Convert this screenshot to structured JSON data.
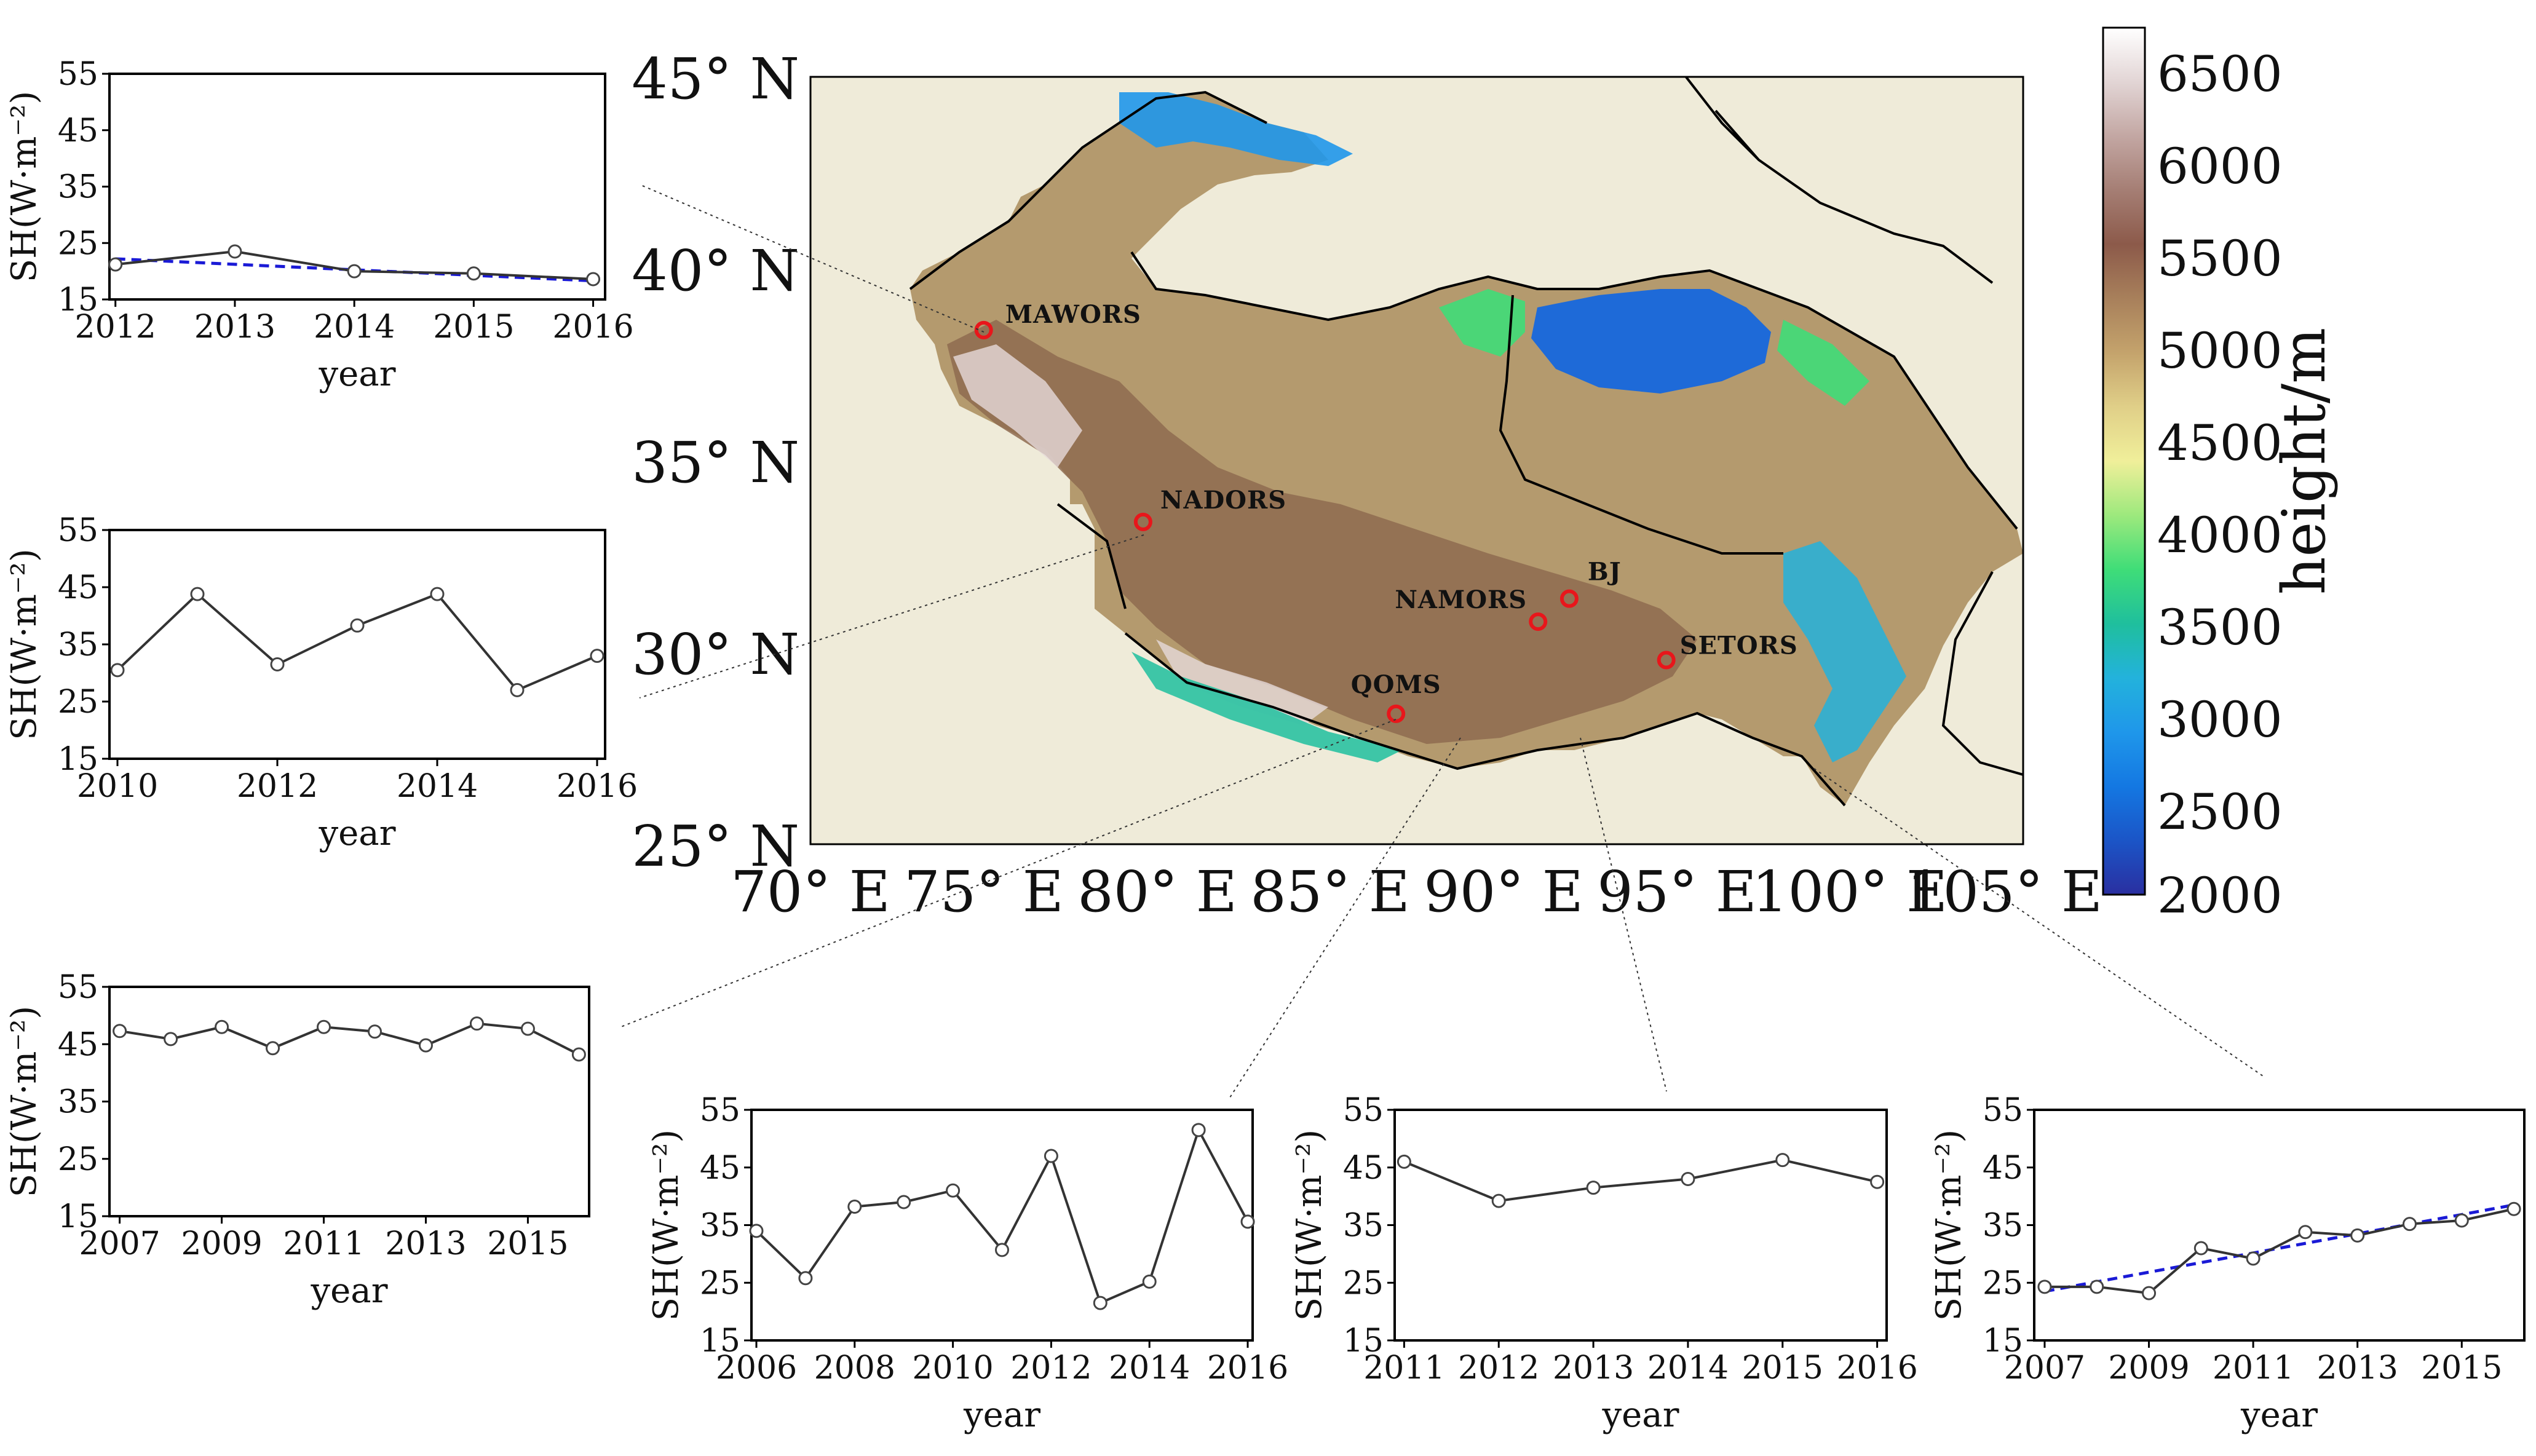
{
  "map": {
    "lat_ticks": [
      "45° N",
      "40° N",
      "35° N",
      "30° N",
      "25° N"
    ],
    "lon_ticks": [
      "70° E",
      "75° E",
      "80° E",
      "85° E",
      "90° E",
      "95° E",
      "100° E",
      "105° E"
    ],
    "extent": {
      "lon": [
        70,
        105
      ],
      "lat": [
        25,
        45
      ]
    },
    "background_color": "#efebd9",
    "stations": [
      {
        "name": "MAWORS",
        "lon": 75.0,
        "lat": 38.4
      },
      {
        "name": "NADORS",
        "lon": 79.6,
        "lat": 33.4
      },
      {
        "name": "NAMORS",
        "lon": 91.0,
        "lat": 30.8
      },
      {
        "name": "BJ",
        "lon": 91.9,
        "lat": 31.4
      },
      {
        "name": "SETORS",
        "lon": 94.7,
        "lat": 29.8
      },
      {
        "name": "QOMS",
        "lon": 86.9,
        "lat": 28.4
      }
    ]
  },
  "colorbar": {
    "label": "height/m",
    "ticks": [
      "6500",
      "6000",
      "5500",
      "5000",
      "4500",
      "4000",
      "3500",
      "3000",
      "2500",
      "2000"
    ],
    "range": [
      2000,
      6700
    ],
    "stops": [
      "#2a2fa0",
      "#1b55c7",
      "#1478e2",
      "#1f97ea",
      "#23b2dc",
      "#1fbf9d",
      "#3fdd78",
      "#9de97d",
      "#f0ef9a",
      "#e0cf88",
      "#c4a36c",
      "#a8805b",
      "#8c5a4a",
      "#a57e74",
      "#c3a7a3",
      "#e2d5d5",
      "#ffffff"
    ]
  },
  "chart_data": [
    {
      "type": "line",
      "station": "MAWORS",
      "x": [
        2012,
        2013,
        2014,
        2015,
        2016
      ],
      "series": [
        {
          "values": [
            21.2,
            23.5,
            20.0,
            19.6,
            18.6
          ]
        }
      ],
      "trend": {
        "x": [
          2012,
          2016
        ],
        "y": [
          22.2,
          18.3
        ]
      },
      "xticks": [
        "2012",
        "2013",
        "2014",
        "2015",
        "2016"
      ],
      "yticks": [
        "55",
        "45",
        "35",
        "25",
        "15"
      ],
      "xlim": [
        2011.95,
        2016.1
      ],
      "ylim": [
        15,
        55
      ],
      "xlabel": "year",
      "ylabel": "SH(W·m⁻²)"
    },
    {
      "type": "line",
      "station": "NADORS",
      "x": [
        2010,
        2011,
        2012,
        2013,
        2014,
        2015,
        2016
      ],
      "series": [
        {
          "values": [
            30.5,
            43.8,
            31.5,
            38.3,
            43.8,
            27.0,
            33.0
          ]
        }
      ],
      "xticks": [
        "2010",
        "2012",
        "2014",
        "2016"
      ],
      "yticks": [
        "55",
        "45",
        "35",
        "25",
        "15"
      ],
      "xlim": [
        2009.9,
        2016.1
      ],
      "ylim": [
        15,
        55
      ],
      "xlabel": "year",
      "ylabel": "SH(W·m⁻²)"
    },
    {
      "type": "line",
      "station": "QOMS",
      "x": [
        2007,
        2008,
        2009,
        2010,
        2011,
        2012,
        2013,
        2014,
        2015,
        2016
      ],
      "series": [
        {
          "values": [
            47.3,
            45.9,
            48.0,
            44.3,
            48.0,
            47.2,
            44.8,
            48.6,
            47.7,
            43.2
          ]
        }
      ],
      "xticks": [
        "2007",
        "2009",
        "2011",
        "2013",
        "2015"
      ],
      "yticks": [
        "55",
        "45",
        "35",
        "25",
        "15"
      ],
      "xlim": [
        2006.8,
        2016.2
      ],
      "ylim": [
        15,
        55
      ],
      "xlabel": "year",
      "ylabel": "SH(W·m⁻²)"
    },
    {
      "type": "line",
      "station": "NAMORS",
      "x": [
        2006,
        2007,
        2008,
        2009,
        2010,
        2011,
        2012,
        2013,
        2014,
        2015,
        2016
      ],
      "series": [
        {
          "values": [
            34.0,
            25.8,
            38.2,
            39.0,
            41.0,
            30.7,
            47.0,
            21.5,
            25.2,
            51.5,
            35.6
          ]
        }
      ],
      "xticks": [
        "2006",
        "2008",
        "2010",
        "2012",
        "2014",
        "2016"
      ],
      "yticks": [
        "55",
        "45",
        "35",
        "25",
        "15"
      ],
      "xlim": [
        2005.9,
        2016.1
      ],
      "ylim": [
        15,
        55
      ],
      "xlabel": "year",
      "ylabel": "SH(W·m⁻²)"
    },
    {
      "type": "line",
      "station": "BJ",
      "x": [
        2011,
        2012,
        2013,
        2014,
        2015,
        2016
      ],
      "series": [
        {
          "values": [
            46.0,
            39.2,
            41.5,
            43.0,
            46.3,
            42.5
          ]
        }
      ],
      "xticks": [
        "2011",
        "2012",
        "2013",
        "2014",
        "2015",
        "2016"
      ],
      "yticks": [
        "55",
        "45",
        "35",
        "25",
        "15"
      ],
      "xlim": [
        2010.9,
        2016.1
      ],
      "ylim": [
        15,
        55
      ],
      "xlabel": "year",
      "ylabel": "SH(W·m⁻²)"
    },
    {
      "type": "line",
      "station": "SETORS",
      "x": [
        2007,
        2008,
        2009,
        2010,
        2011,
        2012,
        2013,
        2014,
        2015,
        2016
      ],
      "series": [
        {
          "values": [
            24.3,
            24.3,
            23.2,
            31.0,
            29.2,
            33.8,
            33.2,
            35.2,
            35.8,
            37.8
          ]
        }
      ],
      "trend": {
        "x": [
          2007,
          2016
        ],
        "y": [
          23.5,
          38.5
        ]
      },
      "xticks": [
        "2007",
        "2009",
        "2011",
        "2013",
        "2015"
      ],
      "yticks": [
        "55",
        "45",
        "35",
        "25",
        "15"
      ],
      "xlim": [
        2006.8,
        2016.2
      ],
      "ylim": [
        15,
        55
      ],
      "xlabel": "year",
      "ylabel": "SH(W·m⁻²)"
    }
  ]
}
